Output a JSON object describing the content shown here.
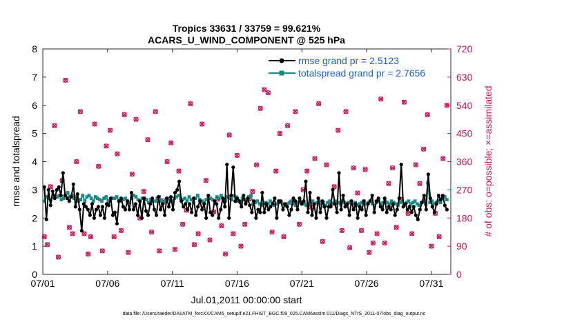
{
  "colors": {
    "rmse": "#000000",
    "spread": "#1a8a87",
    "obs": "#cc1157",
    "legend_text": "#1a5de0",
    "axis": "#262626"
  },
  "chart_data": {
    "type": "line",
    "title": "Tropics 33631 / 33759 = 99.621%",
    "subtitle": "ACARS_U_WIND_COMPONENT @ 525 hPa",
    "xlabel": "Jul.01,2011 00:00:00 start",
    "ylabel": "rmse and totalspread",
    "ylabel_right": "# of obs: o=possible; ×=assimilated",
    "xlim": [
      0,
      31.5
    ],
    "ylim": [
      0,
      8
    ],
    "ylim_right": [
      0,
      720
    ],
    "x_ticks": [
      0,
      5,
      10,
      15,
      20,
      25,
      30
    ],
    "x_tick_labels": [
      "07/01",
      "07/06",
      "07/11",
      "07/16",
      "07/21",
      "07/26",
      "07/31"
    ],
    "y_ticks": [
      "0",
      "1",
      "2",
      "3",
      "4",
      "5",
      "6",
      "7",
      "8"
    ],
    "y_ticks_right": [
      "0",
      "90",
      "180",
      "270",
      "360",
      "450",
      "540",
      "630",
      "720"
    ],
    "legend": [
      {
        "key": "rmse",
        "label": "rmse grand pr = 2.5123"
      },
      {
        "key": "spread",
        "label": "totalspread grand pr = 2.7656"
      }
    ],
    "footer": "data file: /Users/raeder/DAI/ATM_forcXX/CAM6_setup/f.e21.FHIST_BGC.f09_025.CAM6assim.011/Diags_NTrS_2011-07/obs_diag_output.nc",
    "series": [
      {
        "name": "rmse",
        "values": [
          3.1,
          1.95,
          3.0,
          2.45,
          2.95,
          2.7,
          3.0,
          3.1,
          2.8,
          3.6,
          2.8,
          2.7,
          2.6,
          2.75,
          3.2,
          2.4,
          2.85,
          2.3,
          1.55,
          2.5,
          2.4,
          2.3,
          2.1,
          2.5,
          2.0,
          2.3,
          2.4,
          2.1,
          2.4,
          2.0,
          2.5,
          2.45,
          2.7,
          2.1,
          2.2,
          1.8,
          2.6,
          2.7,
          2.4,
          2.3,
          2.6,
          2.3,
          2.9,
          2.3,
          2.5,
          2.1,
          2.6,
          2.0,
          2.7,
          2.25,
          2.1,
          2.5,
          2.7,
          2.3,
          2.1,
          2.75,
          2.3,
          2.5,
          2.1,
          2.7,
          2.4,
          2.75,
          2.3,
          2.9,
          3.0,
          3.3,
          2.6,
          2.4,
          2.5,
          2.3,
          2.5,
          2.2,
          2.7,
          2.1,
          2.4,
          2.6,
          2.3,
          2.5,
          2.0,
          2.8,
          2.2,
          2.1,
          2.6,
          2.5,
          2.0,
          2.3,
          2.7,
          2.4,
          3.9,
          2.0,
          2.8,
          3.8,
          2.6,
          2.7,
          2.6,
          2.4,
          2.8,
          2.5,
          2.7,
          2.45,
          2.2,
          2.6,
          2.0,
          2.3,
          2.2,
          2.9,
          2.2,
          2.5,
          2.3,
          2.4,
          2.5,
          2.7,
          2.0,
          2.6,
          2.6,
          2.3,
          2.5,
          2.4,
          2.1,
          2.3,
          2.7,
          2.6,
          2.3,
          2.7,
          2.5,
          2.6,
          3.3,
          2.2,
          2.9,
          2.1,
          2.5,
          2.0,
          2.7,
          2.2,
          2.6,
          2.4,
          2.0,
          2.4,
          2.4,
          3.0,
          2.5,
          2.2,
          3.6,
          2.3,
          2.8,
          2.4,
          2.5,
          2.1,
          2.6,
          2.3,
          2.5,
          2.0,
          2.4,
          2.3,
          2.6,
          2.1,
          2.5,
          2.6,
          2.8,
          2.2,
          2.6,
          2.7,
          2.4,
          2.3,
          2.7,
          2.2,
          2.4,
          2.3,
          2.5,
          2.1,
          2.3,
          2.7,
          3.9,
          2.4,
          2.5,
          2.3,
          2.4,
          2.2,
          2.4,
          2.1,
          1.95,
          2.3,
          2.55,
          2.8,
          2.3,
          3.55,
          2.7,
          2.4,
          2.2,
          2.5,
          2.8,
          2.65,
          2.8,
          2.45,
          2.3
        ]
      },
      {
        "name": "totalspread",
        "values": [
          2.6,
          2.75,
          2.7,
          2.65,
          2.75,
          2.8,
          2.75,
          2.8,
          2.65,
          2.7,
          2.8,
          2.9,
          2.75,
          2.8,
          2.7,
          2.75,
          2.6,
          2.65,
          2.8,
          2.6,
          2.75,
          2.8,
          2.7,
          2.6,
          2.75,
          2.7,
          2.65,
          2.6,
          2.7,
          2.75,
          2.6,
          2.65,
          2.7,
          2.7,
          2.75,
          2.6,
          2.6,
          2.65,
          2.7,
          2.6,
          2.55,
          2.7,
          2.8,
          2.75,
          2.65,
          2.6,
          2.7,
          2.7,
          2.65,
          2.55,
          2.65,
          2.6,
          2.6,
          2.7,
          2.75,
          2.6,
          2.55,
          2.6,
          2.7,
          2.65,
          2.6,
          2.7,
          2.75,
          2.8,
          2.7,
          2.65,
          2.7,
          2.6,
          2.75,
          2.65,
          2.6,
          2.7,
          2.8,
          2.65,
          2.6,
          2.55,
          2.65,
          2.75,
          2.7,
          2.65,
          2.6,
          2.75,
          2.7,
          2.8,
          2.65,
          2.6,
          2.75,
          2.7,
          2.65,
          2.8,
          2.75,
          2.6,
          2.55,
          2.7,
          2.65,
          2.6,
          2.75,
          2.8,
          2.5,
          2.55,
          2.6,
          2.5,
          2.45,
          2.5,
          2.55,
          2.5,
          2.6,
          2.55,
          2.45,
          2.5,
          2.6,
          2.55,
          2.5,
          2.45,
          2.5,
          2.55,
          2.6,
          2.5,
          2.45,
          2.55,
          2.6,
          2.55,
          2.5,
          2.45,
          2.5,
          2.55,
          2.6,
          2.5,
          2.55,
          2.6,
          2.5,
          2.55,
          2.45,
          2.55,
          2.6,
          2.5,
          2.55,
          2.6,
          2.55,
          2.5,
          2.6,
          2.55,
          2.5,
          2.55,
          2.6,
          2.5,
          2.55,
          2.45,
          2.5,
          2.55,
          2.6,
          2.5,
          2.55,
          2.6,
          2.5,
          2.45,
          2.55,
          2.6,
          2.5,
          2.55,
          2.6,
          2.55,
          2.5,
          2.6,
          2.55,
          2.5,
          2.45,
          2.55,
          2.6,
          2.5,
          2.55,
          2.6,
          2.5,
          2.55,
          2.6,
          2.5,
          2.45,
          2.55,
          2.6,
          2.5,
          3.25,
          2.55,
          2.6,
          2.5,
          2.55,
          2.6,
          2.55,
          2.7,
          2.75,
          2.65
        ]
      }
    ],
    "obs_count_x": [
      0.12,
      0.35,
      0.6,
      0.9,
      1.2,
      1.5,
      1.75,
      2.05,
      2.3,
      2.6,
      2.9,
      3.2,
      3.5,
      3.7,
      4.0,
      4.3,
      4.6,
      4.9,
      5.2,
      5.5,
      5.75,
      6.05,
      6.3,
      6.6,
      6.9,
      7.2,
      7.5,
      7.8,
      8.1,
      8.4,
      8.7,
      9.0,
      9.3,
      9.6,
      9.9,
      10.2,
      10.5,
      10.8,
      11.1,
      11.4,
      11.7,
      12.0,
      12.3,
      12.6,
      12.9,
      13.2,
      13.5,
      13.8,
      14.1,
      14.4,
      14.7,
      15.0,
      15.3,
      15.6,
      15.9,
      16.2,
      16.5,
      16.8,
      17.1,
      17.4,
      17.7,
      18.0,
      18.3,
      18.6,
      18.9,
      19.2,
      19.5,
      19.8,
      20.1,
      20.4,
      20.7,
      21.0,
      21.3,
      21.6,
      21.9,
      22.2,
      22.5,
      22.8,
      23.1,
      23.4,
      23.7,
      24.0,
      24.3,
      24.6,
      24.9,
      25.2,
      25.5,
      25.8,
      26.1,
      26.4,
      26.7,
      27.0,
      27.3,
      27.6,
      27.9,
      28.2,
      28.5,
      28.8,
      29.1,
      29.4,
      29.7,
      30.0,
      30.3,
      30.6,
      30.9,
      31.2
    ],
    "obs_count_values": [
      120,
      95,
      280,
      475,
      55,
      300,
      620,
      150,
      130,
      360,
      520,
      130,
      65,
      120,
      480,
      345,
      75,
      410,
      460,
      120,
      385,
      140,
      510,
      70,
      320,
      495,
      180,
      265,
      430,
      135,
      520,
      75,
      235,
      360,
      420,
      80,
      330,
      160,
      205,
      545,
      95,
      130,
      480,
      300,
      110,
      200,
      240,
      155,
      65,
      445,
      130,
      380,
      90,
      160,
      240,
      265,
      350,
      530,
      590,
      580,
      135,
      330,
      450,
      120,
      475,
      230,
      520,
      160,
      270,
      330,
      215,
      370,
      545,
      105,
      350,
      225,
      280,
      460,
      140,
      520,
      85,
      340,
      260,
      140,
      335,
      70,
      100,
      130,
      560,
      100,
      290,
      340,
      150,
      240,
      550,
      195,
      130,
      350,
      290,
      400,
      510,
      90,
      195,
      120,
      370,
      540
    ]
  }
}
